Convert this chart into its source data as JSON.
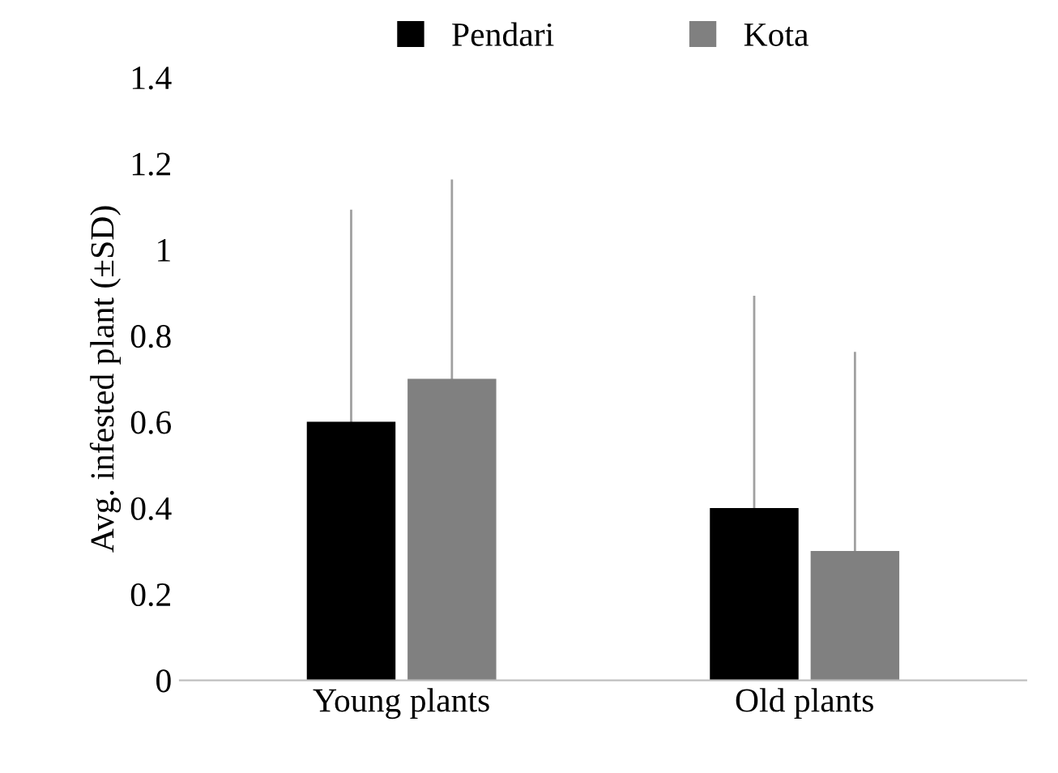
{
  "chart_data": {
    "type": "bar",
    "ylabel": "Avg. infested plant (±SD)",
    "categories": [
      "Young plants",
      "Old plants"
    ],
    "series": [
      {
        "name": "Pendari",
        "color": "#000000",
        "values": [
          0.6,
          0.4
        ],
        "errors": [
          [
            0.6,
            1.09
          ],
          [
            0.4,
            0.89
          ]
        ]
      },
      {
        "name": "Kota",
        "color": "#808080",
        "values": [
          0.7,
          0.3
        ],
        "errors": [
          [
            0.7,
            1.16
          ],
          [
            0.3,
            0.76
          ]
        ]
      }
    ],
    "ylim": [
      0,
      1.4
    ],
    "yticks": [
      0,
      0.2,
      0.4,
      0.6,
      0.8,
      1,
      1.2,
      1.4
    ],
    "grid": false,
    "legend": "top"
  }
}
